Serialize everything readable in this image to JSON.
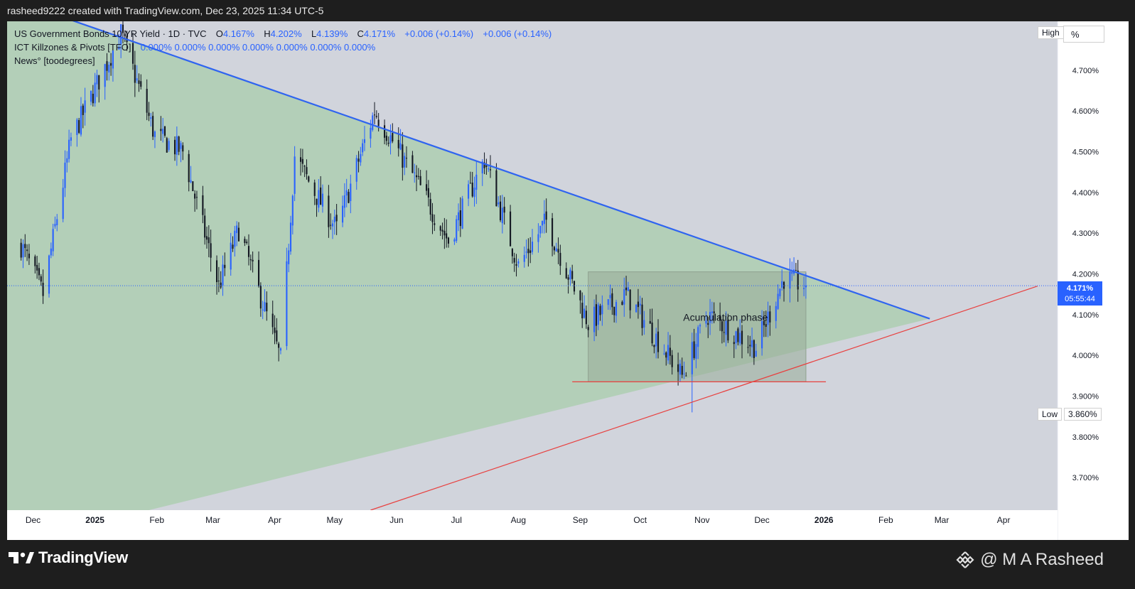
{
  "header": {
    "attribution": "rasheed9222 created with TradingView.com, Dec 23, 2025 11:34 UTC-5"
  },
  "legend": {
    "symbol_line": "US Government Bonds 10 YR Yield · 1D · TVC",
    "ohlc": [
      {
        "label": "O",
        "value": "4.167%"
      },
      {
        "label": "H",
        "value": "4.202%"
      },
      {
        "label": "L",
        "value": "4.139%"
      },
      {
        "label": "C",
        "value": "4.171%"
      }
    ],
    "change": "+0.006 (+0.14%)",
    "change2": "+0.006 (+0.14%)",
    "indicator1_name": "ICT Killzones & Pivots [TFO]",
    "indicator1_values": [
      "0.000%",
      "0.000%",
      "0.000%",
      "0.000%",
      "0.000%",
      "0.000%",
      "0.000%"
    ],
    "indicator2_name": "News° [toodegrees]"
  },
  "price_scale": {
    "high_label": "High",
    "unit_button": "%",
    "low_label": "Low",
    "low_value": "3.860%",
    "current_price": "4.171%",
    "countdown": "05:55:44"
  },
  "annotation": {
    "text": "Acumulation phase"
  },
  "footer": {
    "logo_text": "TradingView",
    "credit": "@ M A Rasheed"
  },
  "colors": {
    "up_candle": "#2962ff",
    "down_candle": "#131722",
    "trendline": "#2f64f0",
    "support_line": "#e8403f",
    "triangle_fill": "#b3cfb8",
    "background": "#d1d4dc",
    "box_fill": "#97ab97"
  },
  "chart_data": {
    "type": "candlestick",
    "title": "US Government Bonds 10 YR Yield · 1D · TVC",
    "xlabel": "",
    "ylabel": "",
    "y_axis_ticks": [
      "4.700%",
      "4.600%",
      "4.500%",
      "4.400%",
      "4.300%",
      "4.200%",
      "4.100%",
      "4.000%",
      "3.900%",
      "3.800%",
      "3.700%"
    ],
    "y_tick_values": [
      4.7,
      4.6,
      4.5,
      4.4,
      4.3,
      4.2,
      4.1,
      4.0,
      3.9,
      3.8,
      3.7
    ],
    "ylim": [
      3.62,
      4.82
    ],
    "x_axis_ticks": [
      {
        "label": "Dec",
        "bold": false
      },
      {
        "label": "2025",
        "bold": true
      },
      {
        "label": "Feb",
        "bold": false
      },
      {
        "label": "Mar",
        "bold": false
      },
      {
        "label": "Apr",
        "bold": false
      },
      {
        "label": "May",
        "bold": false
      },
      {
        "label": "Jun",
        "bold": false
      },
      {
        "label": "Jul",
        "bold": false
      },
      {
        "label": "Aug",
        "bold": false
      },
      {
        "label": "Sep",
        "bold": false
      },
      {
        "label": "Oct",
        "bold": false
      },
      {
        "label": "Nov",
        "bold": false
      },
      {
        "label": "Dec",
        "bold": false
      },
      {
        "label": "2026",
        "bold": true
      },
      {
        "label": "Feb",
        "bold": false
      },
      {
        "label": "Mar",
        "bold": false
      },
      {
        "label": "Apr",
        "bold": false
      }
    ],
    "date_range": [
      "2024-11-25",
      "2025-12-23"
    ],
    "monthly_path": [
      {
        "date": "2024-11-25",
        "close": 4.27
      },
      {
        "date": "2024-12-06",
        "close": 4.15
      },
      {
        "date": "2024-12-20",
        "close": 4.53
      },
      {
        "date": "2025-01-14",
        "close": 4.79
      },
      {
        "date": "2025-01-31",
        "close": 4.54
      },
      {
        "date": "2025-02-14",
        "close": 4.5
      },
      {
        "date": "2025-03-04",
        "close": 4.17
      },
      {
        "date": "2025-03-14",
        "close": 4.31
      },
      {
        "date": "2025-04-04",
        "close": 3.99
      },
      {
        "date": "2025-04-11",
        "close": 4.49
      },
      {
        "date": "2025-04-21",
        "close": 4.4
      },
      {
        "date": "2025-05-02",
        "close": 4.31
      },
      {
        "date": "2025-05-21",
        "close": 4.6
      },
      {
        "date": "2025-06-13",
        "close": 4.41
      },
      {
        "date": "2025-06-27",
        "close": 4.28
      },
      {
        "date": "2025-07-15",
        "close": 4.48
      },
      {
        "date": "2025-08-01",
        "close": 4.22
      },
      {
        "date": "2025-08-15",
        "close": 4.33
      },
      {
        "date": "2025-09-05",
        "close": 4.08
      },
      {
        "date": "2025-09-24",
        "close": 4.15
      },
      {
        "date": "2025-10-22",
        "close": 3.95
      },
      {
        "date": "2025-11-04",
        "close": 4.1
      },
      {
        "date": "2025-11-28",
        "close": 4.02
      },
      {
        "date": "2025-12-12",
        "close": 4.19
      },
      {
        "date": "2025-12-23",
        "close": 4.171
      }
    ],
    "extremes": {
      "high": {
        "date": "2025-01-14",
        "value": 4.809
      },
      "low": {
        "date": "2025-04-04",
        "value": 3.86
      }
    },
    "last_candle": {
      "date": "2025-12-23",
      "open": 4.167,
      "high": 4.202,
      "low": 4.139,
      "close": 4.171
    },
    "drawings": {
      "descending_trendline": [
        {
          "date": "2024-12-16",
          "value": 4.83
        },
        {
          "date": "2026-02-23",
          "value": 4.09
        }
      ],
      "ascending_support": [
        {
          "date": "2025-05-19",
          "value": 3.62
        },
        {
          "date": "2026-04-18",
          "value": 4.17
        }
      ],
      "horizontal_support": {
        "value": 3.935,
        "from": "2025-08-28",
        "to": "2026-01-02"
      },
      "accumulation_box": {
        "from": "2025-09-05",
        "to": "2025-12-23",
        "top": 4.205,
        "bottom": 3.935
      },
      "triangle": {
        "apex": {
          "date": "2026-02-23",
          "value": 4.09
        },
        "upper_start": {
          "date": "2024-12-16",
          "value": 4.83
        },
        "lower_start": {
          "date": "2025-01-28",
          "value": 3.62
        }
      }
    }
  }
}
